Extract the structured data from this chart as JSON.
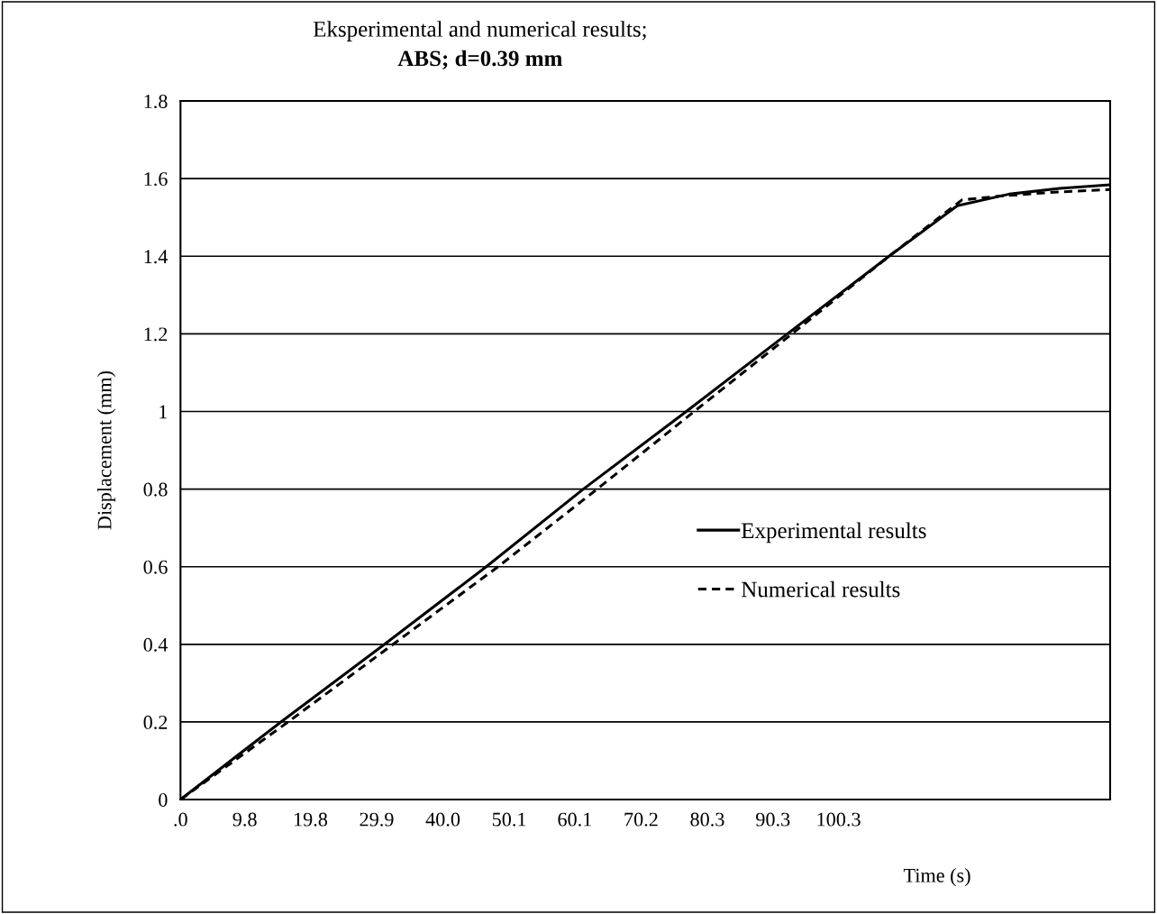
{
  "chart_data": {
    "type": "line",
    "title": "Eksperimental and numerical results;",
    "subtitle": "ABS; d=0.39 mm",
    "xlabel": "Time (s)",
    "ylabel": "Displacement (mm)",
    "xlim": [
      0,
      141.7
    ],
    "ylim": [
      0,
      1.8
    ],
    "xticks": [
      {
        "value": 0,
        "label": ".0"
      },
      9.8,
      19.8,
      29.9,
      {
        "value": 40,
        "label": "40.0"
      },
      50.1,
      60.1,
      70.2,
      80.3,
      90.3,
      100.3
    ],
    "yticks": [
      0,
      0.2,
      0.4,
      0.6,
      0.8,
      1,
      1.2,
      1.4,
      1.6,
      1.8
    ],
    "grid": "y",
    "legend": "right",
    "series": [
      {
        "name": "Experimental results",
        "color": "#000000",
        "line_style": "solid",
        "x": [
          0,
          15.3,
          31.1,
          46.6,
          61.4,
          77.1,
          92.5,
          108,
          118.4,
          126.3,
          134,
          141.7
        ],
        "values": [
          0,
          0.2,
          0.4,
          0.6,
          0.8,
          1.0,
          1.2,
          1.4,
          1.53,
          1.56,
          1.575,
          1.584
        ]
      },
      {
        "name": "Numerical results",
        "color": "#000000",
        "line_style": "dashed",
        "x": [
          0,
          16.4,
          32.4,
          48.4,
          63.5,
          78.3,
          93.2,
          108,
          119.1,
          124.9,
          133.1,
          141.7
        ],
        "values": [
          0,
          0.2,
          0.4,
          0.6,
          0.8,
          1.0,
          1.2,
          1.4,
          1.545,
          1.555,
          1.565,
          1.572
        ]
      }
    ]
  }
}
